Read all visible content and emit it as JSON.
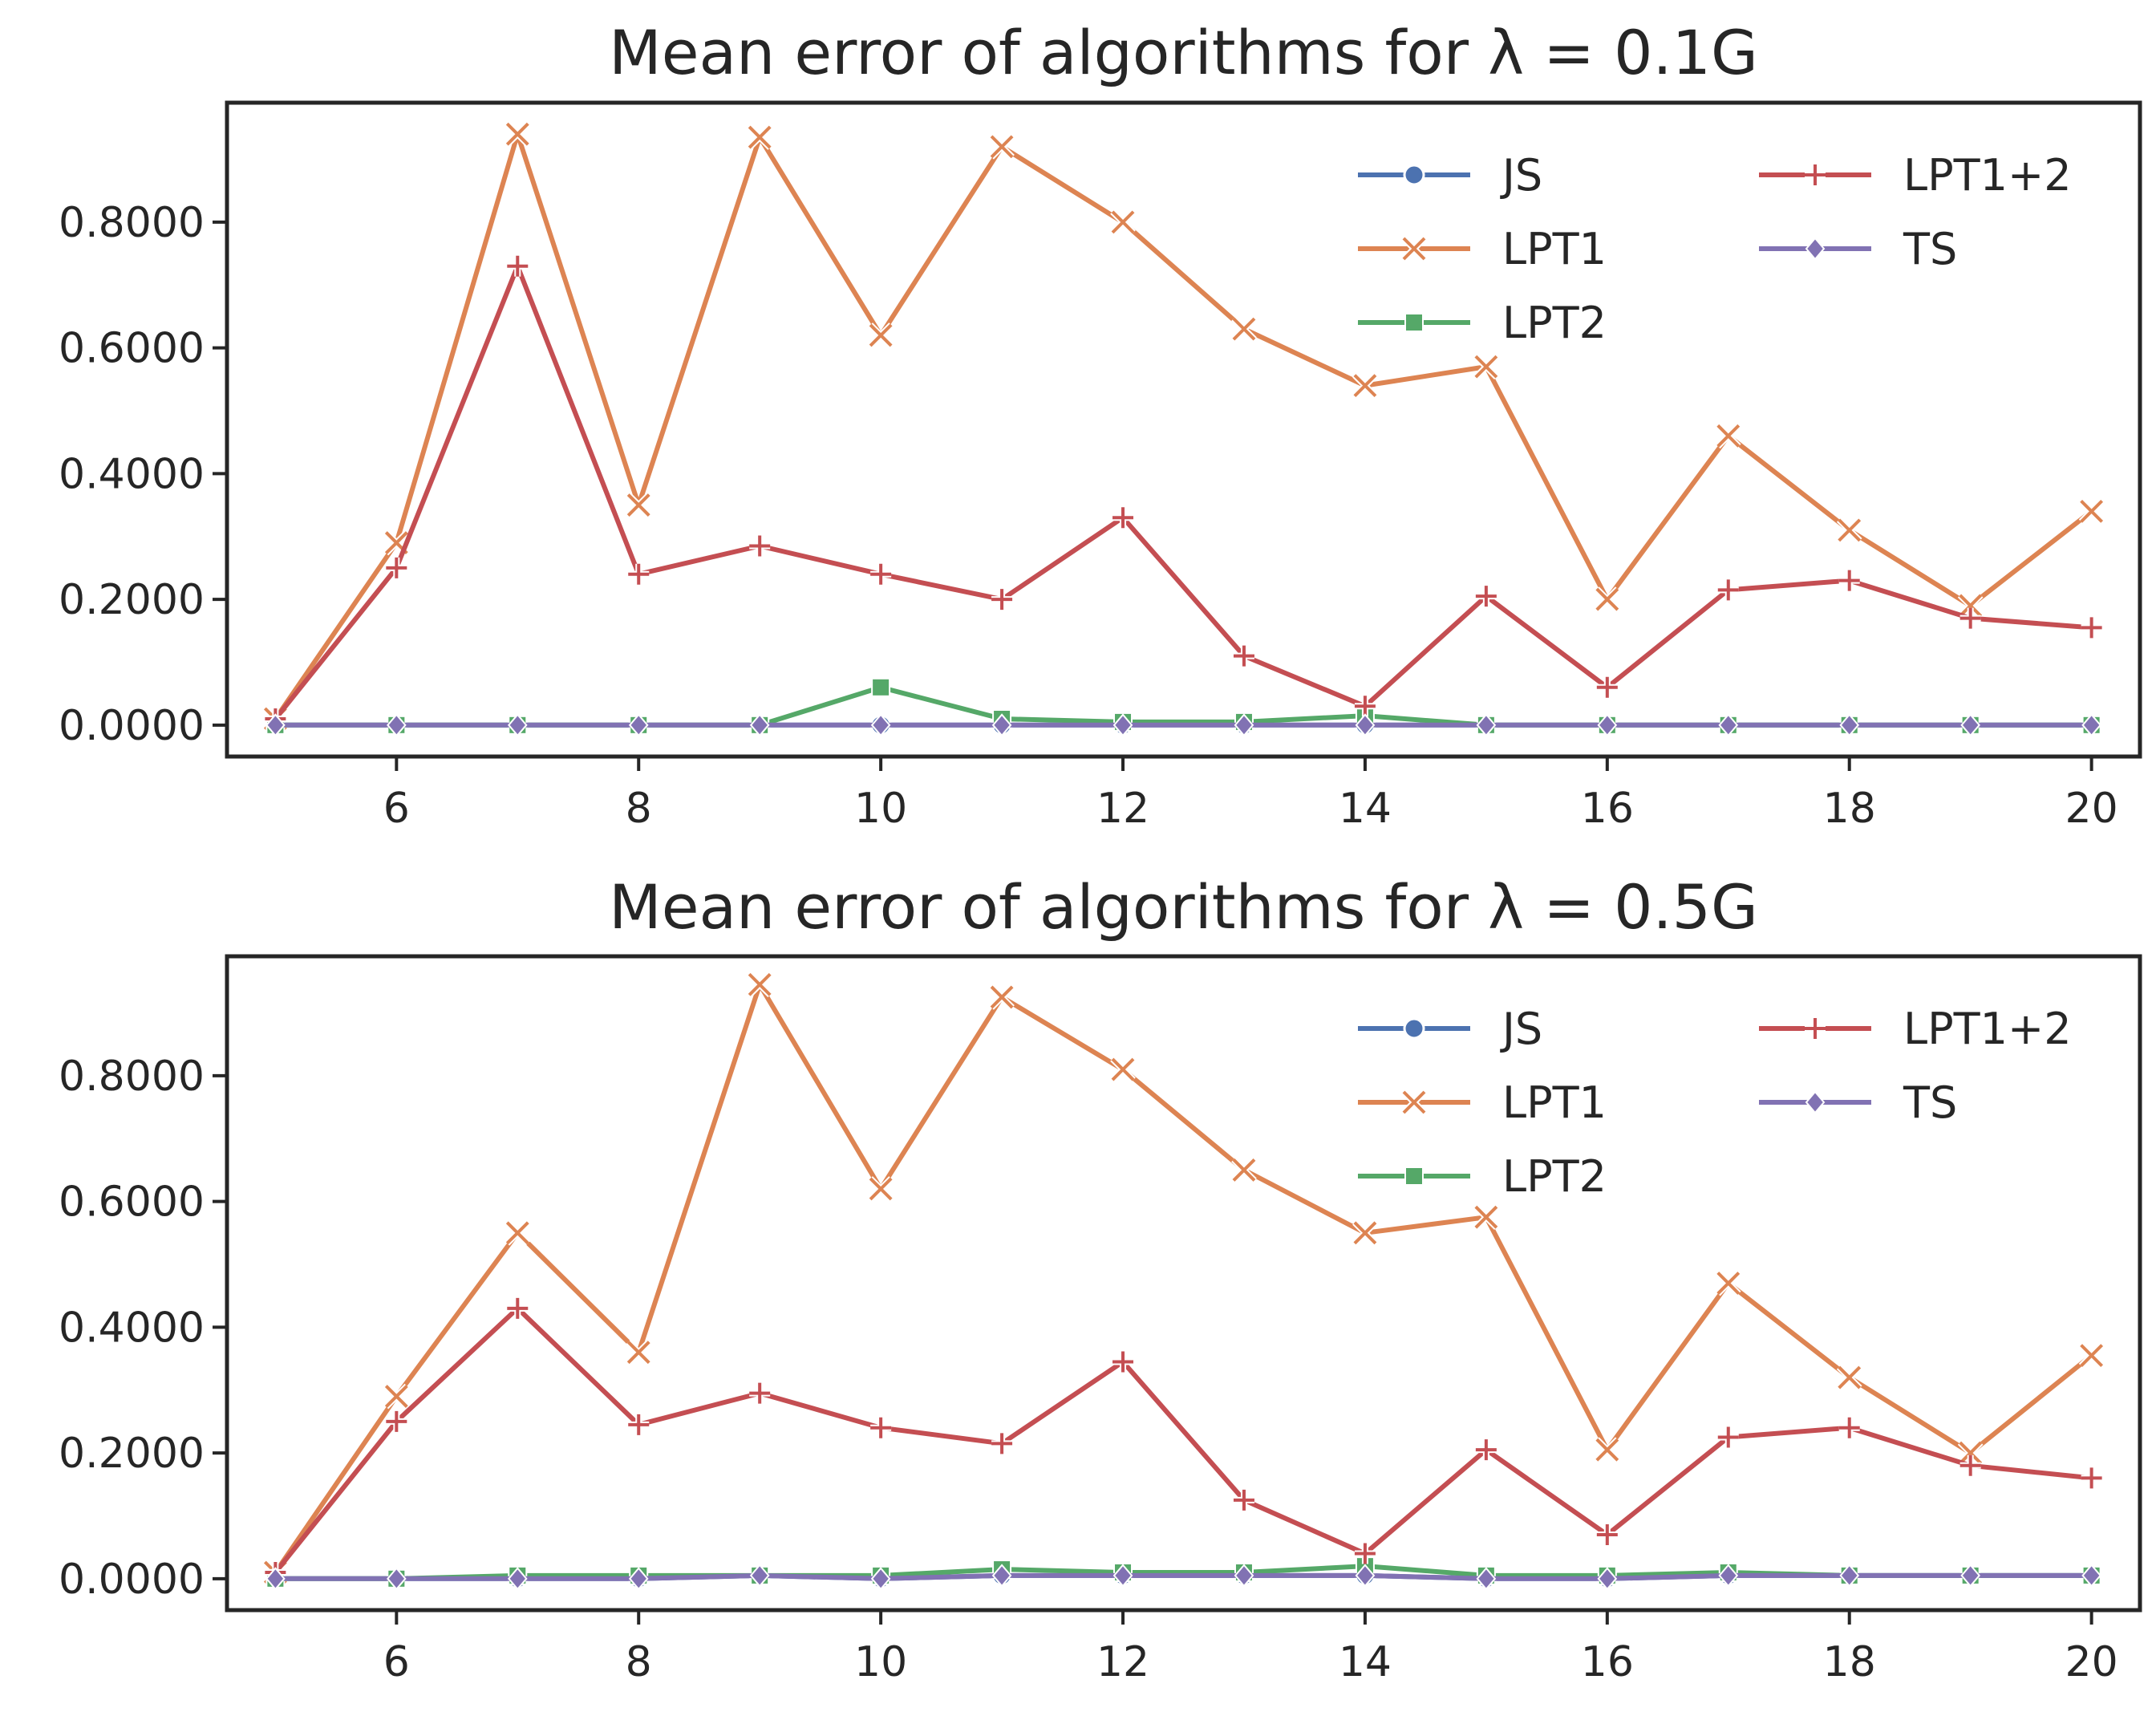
{
  "chart_data": [
    {
      "type": "line",
      "title": "Mean error of algorithms for λ = 0.1G",
      "xlabel": "",
      "ylabel": "",
      "xlim": [
        4.6,
        20.4
      ],
      "ylim": [
        -0.05,
        0.99
      ],
      "xticks": [
        6,
        8,
        10,
        12,
        14,
        16,
        18,
        20
      ],
      "yticks": [
        0,
        0.2,
        0.4,
        0.6,
        0.8
      ],
      "ytick_labels": [
        "0.0000",
        "0.2000",
        "0.4000",
        "0.6000",
        "0.8000"
      ],
      "grid": false,
      "legend_position": "top-right",
      "x": [
        5,
        6,
        7,
        8,
        9,
        10,
        11,
        12,
        13,
        14,
        15,
        16,
        17,
        18,
        19,
        20
      ],
      "series": [
        {
          "name": "JS",
          "color": "#4c72b0",
          "marker": "circle",
          "values": [
            0,
            0,
            0,
            0,
            0,
            0,
            0,
            0,
            0,
            0,
            0,
            0,
            0,
            0,
            0,
            0
          ]
        },
        {
          "name": "LPT1",
          "color": "#dd8452",
          "marker": "x",
          "values": [
            0.01,
            0.29,
            0.94,
            0.35,
            0.935,
            0.62,
            0.92,
            0.8,
            0.63,
            0.54,
            0.57,
            0.2,
            0.46,
            0.31,
            0.19,
            0.34
          ]
        },
        {
          "name": "LPT2",
          "color": "#55a868",
          "marker": "square",
          "values": [
            0,
            0,
            0,
            0,
            0,
            0.06,
            0.01,
            0.005,
            0.005,
            0.015,
            0,
            0,
            0,
            0,
            0,
            0
          ]
        },
        {
          "name": "LPT1+2",
          "color": "#c44e52",
          "marker": "plus",
          "values": [
            0.01,
            0.25,
            0.73,
            0.24,
            0.285,
            0.24,
            0.2,
            0.33,
            0.11,
            0.03,
            0.205,
            0.06,
            0.215,
            0.23,
            0.17,
            0.155
          ]
        },
        {
          "name": "TS",
          "color": "#8172b3",
          "marker": "diamond",
          "values": [
            0,
            0,
            0,
            0,
            0,
            0,
            0,
            0,
            0,
            0,
            0,
            0,
            0,
            0,
            0,
            0
          ]
        }
      ]
    },
    {
      "type": "line",
      "title": "Mean error of algorithms for λ = 0.5G",
      "xlabel": "",
      "ylabel": "",
      "xlim": [
        4.6,
        20.4
      ],
      "ylim": [
        -0.05,
        0.99
      ],
      "xticks": [
        6,
        8,
        10,
        12,
        14,
        16,
        18,
        20
      ],
      "yticks": [
        0,
        0.2,
        0.4,
        0.6,
        0.8
      ],
      "ytick_labels": [
        "0.0000",
        "0.2000",
        "0.4000",
        "0.6000",
        "0.8000"
      ],
      "grid": false,
      "legend_position": "top-right",
      "x": [
        5,
        6,
        7,
        8,
        9,
        10,
        11,
        12,
        13,
        14,
        15,
        16,
        17,
        18,
        19,
        20
      ],
      "series": [
        {
          "name": "JS",
          "color": "#4c72b0",
          "marker": "circle",
          "values": [
            0,
            0,
            0,
            0,
            0.005,
            0,
            0.005,
            0.005,
            0.005,
            0.005,
            0,
            0,
            0.005,
            0.005,
            0.005,
            0.005
          ]
        },
        {
          "name": "LPT1",
          "color": "#dd8452",
          "marker": "x",
          "values": [
            0.01,
            0.29,
            0.55,
            0.36,
            0.945,
            0.62,
            0.925,
            0.81,
            0.65,
            0.55,
            0.575,
            0.205,
            0.47,
            0.32,
            0.2,
            0.355
          ]
        },
        {
          "name": "LPT2",
          "color": "#55a868",
          "marker": "square",
          "values": [
            0,
            0,
            0.005,
            0.005,
            0.005,
            0.005,
            0.015,
            0.01,
            0.01,
            0.02,
            0.005,
            0.005,
            0.01,
            0.005,
            0.005,
            0.005
          ]
        },
        {
          "name": "LPT1+2",
          "color": "#c44e52",
          "marker": "plus",
          "values": [
            0.01,
            0.25,
            0.43,
            0.245,
            0.295,
            0.24,
            0.215,
            0.345,
            0.125,
            0.04,
            0.205,
            0.07,
            0.225,
            0.24,
            0.18,
            0.16
          ]
        },
        {
          "name": "TS",
          "color": "#8172b3",
          "marker": "diamond",
          "values": [
            0,
            0,
            0,
            0,
            0.005,
            0,
            0.005,
            0.005,
            0.005,
            0.005,
            0,
            0,
            0.005,
            0.005,
            0.005,
            0.005
          ]
        }
      ]
    }
  ]
}
